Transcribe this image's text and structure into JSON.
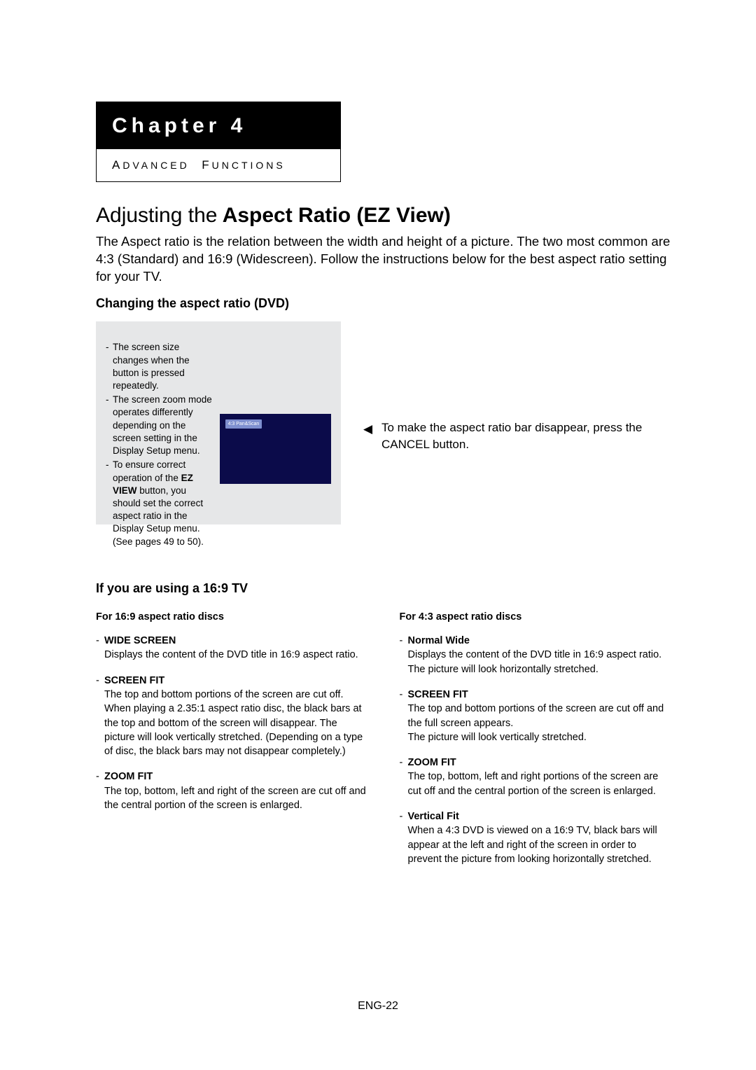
{
  "chapter": {
    "label": "Chapter 4",
    "subtitle_html": "A DVANCED  F UNCTIONS"
  },
  "title": {
    "light": "Adjusting the",
    "bold": "Aspect Ratio (EZ View)"
  },
  "intro": "The Aspect ratio is the relation between the width and height of a picture. The two most common are 4:3 (Standard) and 16:9 (Widescreen). Follow the instructions below for the best aspect ratio setting for your TV.",
  "section_changing": "Changing the aspect ratio (DVD)",
  "notes": {
    "n1": "The screen size changes when the button is pressed repeatedly.",
    "n2": "The screen zoom mode operates differently depending on the screen setting in the Display Setup menu.",
    "n3_pre": "To ensure correct operation of the ",
    "n3_bold": "EZ VIEW",
    "n3_post": " button, you should set the correct aspect ratio in the Display Setup menu.",
    "n3_pages": "(See pages 49 to 50)."
  },
  "tv_bar": "4:3 Pan&Scan",
  "tip": "To make the aspect ratio bar disappear, press the CANCEL button.",
  "section_169": "If you are using a 16:9 TV",
  "left": {
    "header": "For 16:9 aspect ratio discs",
    "m1": {
      "name": "WIDE SCREEN",
      "desc": "Displays the content of the DVD title in 16:9 aspect ratio."
    },
    "m2": {
      "name": "SCREEN FIT",
      "desc": "The top and bottom portions of the screen are cut off. When playing a 2.35:1 aspect ratio disc, the black bars at the top and bottom of the screen will disappear. The picture will look vertically stretched. (Depending on a type of disc, the black bars may not disappear completely.)"
    },
    "m3": {
      "name": "ZOOM FIT",
      "desc": "The top, bottom, left and right of the screen are cut off and the central portion of the screen is enlarged."
    }
  },
  "right": {
    "header": "For 4:3 aspect ratio discs",
    "m1": {
      "name": "Normal Wide",
      "desc": "Displays the content of the DVD title in 16:9 aspect ratio. The picture will look horizontally stretched."
    },
    "m2": {
      "name": "SCREEN FIT",
      "desc1": "The top and bottom portions of the screen are cut off and the full screen appears.",
      "desc2": "The picture will look vertically stretched."
    },
    "m3": {
      "name": "ZOOM FIT",
      "desc": "The top, bottom, left and right portions of the screen are cut off and the central portion of the screen is enlarged."
    },
    "m4": {
      "name": "Vertical Fit",
      "desc": "When a 4:3 DVD is viewed on a 16:9 TV, black bars will appear at the left and right of the screen in order to prevent the picture from looking horizontally stretched."
    }
  },
  "page_number": "ENG-22"
}
